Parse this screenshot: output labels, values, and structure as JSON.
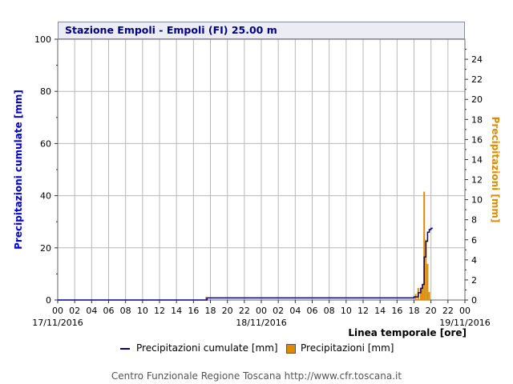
{
  "chart_data": {
    "type": "bar+line",
    "title": "Stazione Empoli - Empoli (FI) 25.00 m",
    "xlabel": "Linea temporale [ore]",
    "ylabel_left": "Precipitazioni cumulate [mm]",
    "ylabel_right": "Precipitazioni [mm]",
    "ylim_left": [
      0,
      100
    ],
    "ylim_right": [
      0,
      26
    ],
    "yticks_left": [
      "0",
      "20",
      "40",
      "60",
      "80",
      "100"
    ],
    "yticks_right": [
      "0",
      "2",
      "4",
      "6",
      "8",
      "10",
      "12",
      "14",
      "16",
      "18",
      "20",
      "22",
      "24"
    ],
    "xticks": [
      "00",
      "02",
      "04",
      "06",
      "08",
      "10",
      "12",
      "14",
      "16",
      "18",
      "20",
      "22",
      "00",
      "02",
      "04",
      "06",
      "08",
      "10",
      "12",
      "14",
      "16",
      "18",
      "20",
      "22",
      "00"
    ],
    "date_labels": [
      "17/11/2016",
      "18/11/2016",
      "19/11/2016"
    ],
    "grid": true,
    "series": [
      {
        "name": "Precipitazioni cumulate [mm]",
        "type": "step-line",
        "color": "#00008b",
        "x_hours": [
          0,
          17.5,
          17.6,
          41.5,
          42.0,
          42.5,
          42.8,
          43.0,
          43.2,
          43.4,
          43.6,
          43.8,
          44.0,
          44.2
        ],
        "values": [
          0,
          0,
          0.8,
          0.8,
          1.2,
          2.8,
          4.5,
          6.0,
          16.5,
          22.5,
          26.0,
          27.0,
          27.5,
          27.5
        ]
      },
      {
        "name": "Precipitazioni [mm]",
        "type": "bar",
        "color": "#e08a00",
        "x_hours": [
          17.5,
          42.2,
          42.5,
          42.8,
          43.0,
          43.2,
          43.4,
          43.6,
          43.8
        ],
        "values": [
          0.3,
          0.6,
          1.2,
          1.2,
          1.5,
          10.8,
          6.0,
          3.6,
          0.8
        ]
      }
    ]
  },
  "footer": "Centro Funzionale Regione Toscana http://www.cfr.toscana.it"
}
